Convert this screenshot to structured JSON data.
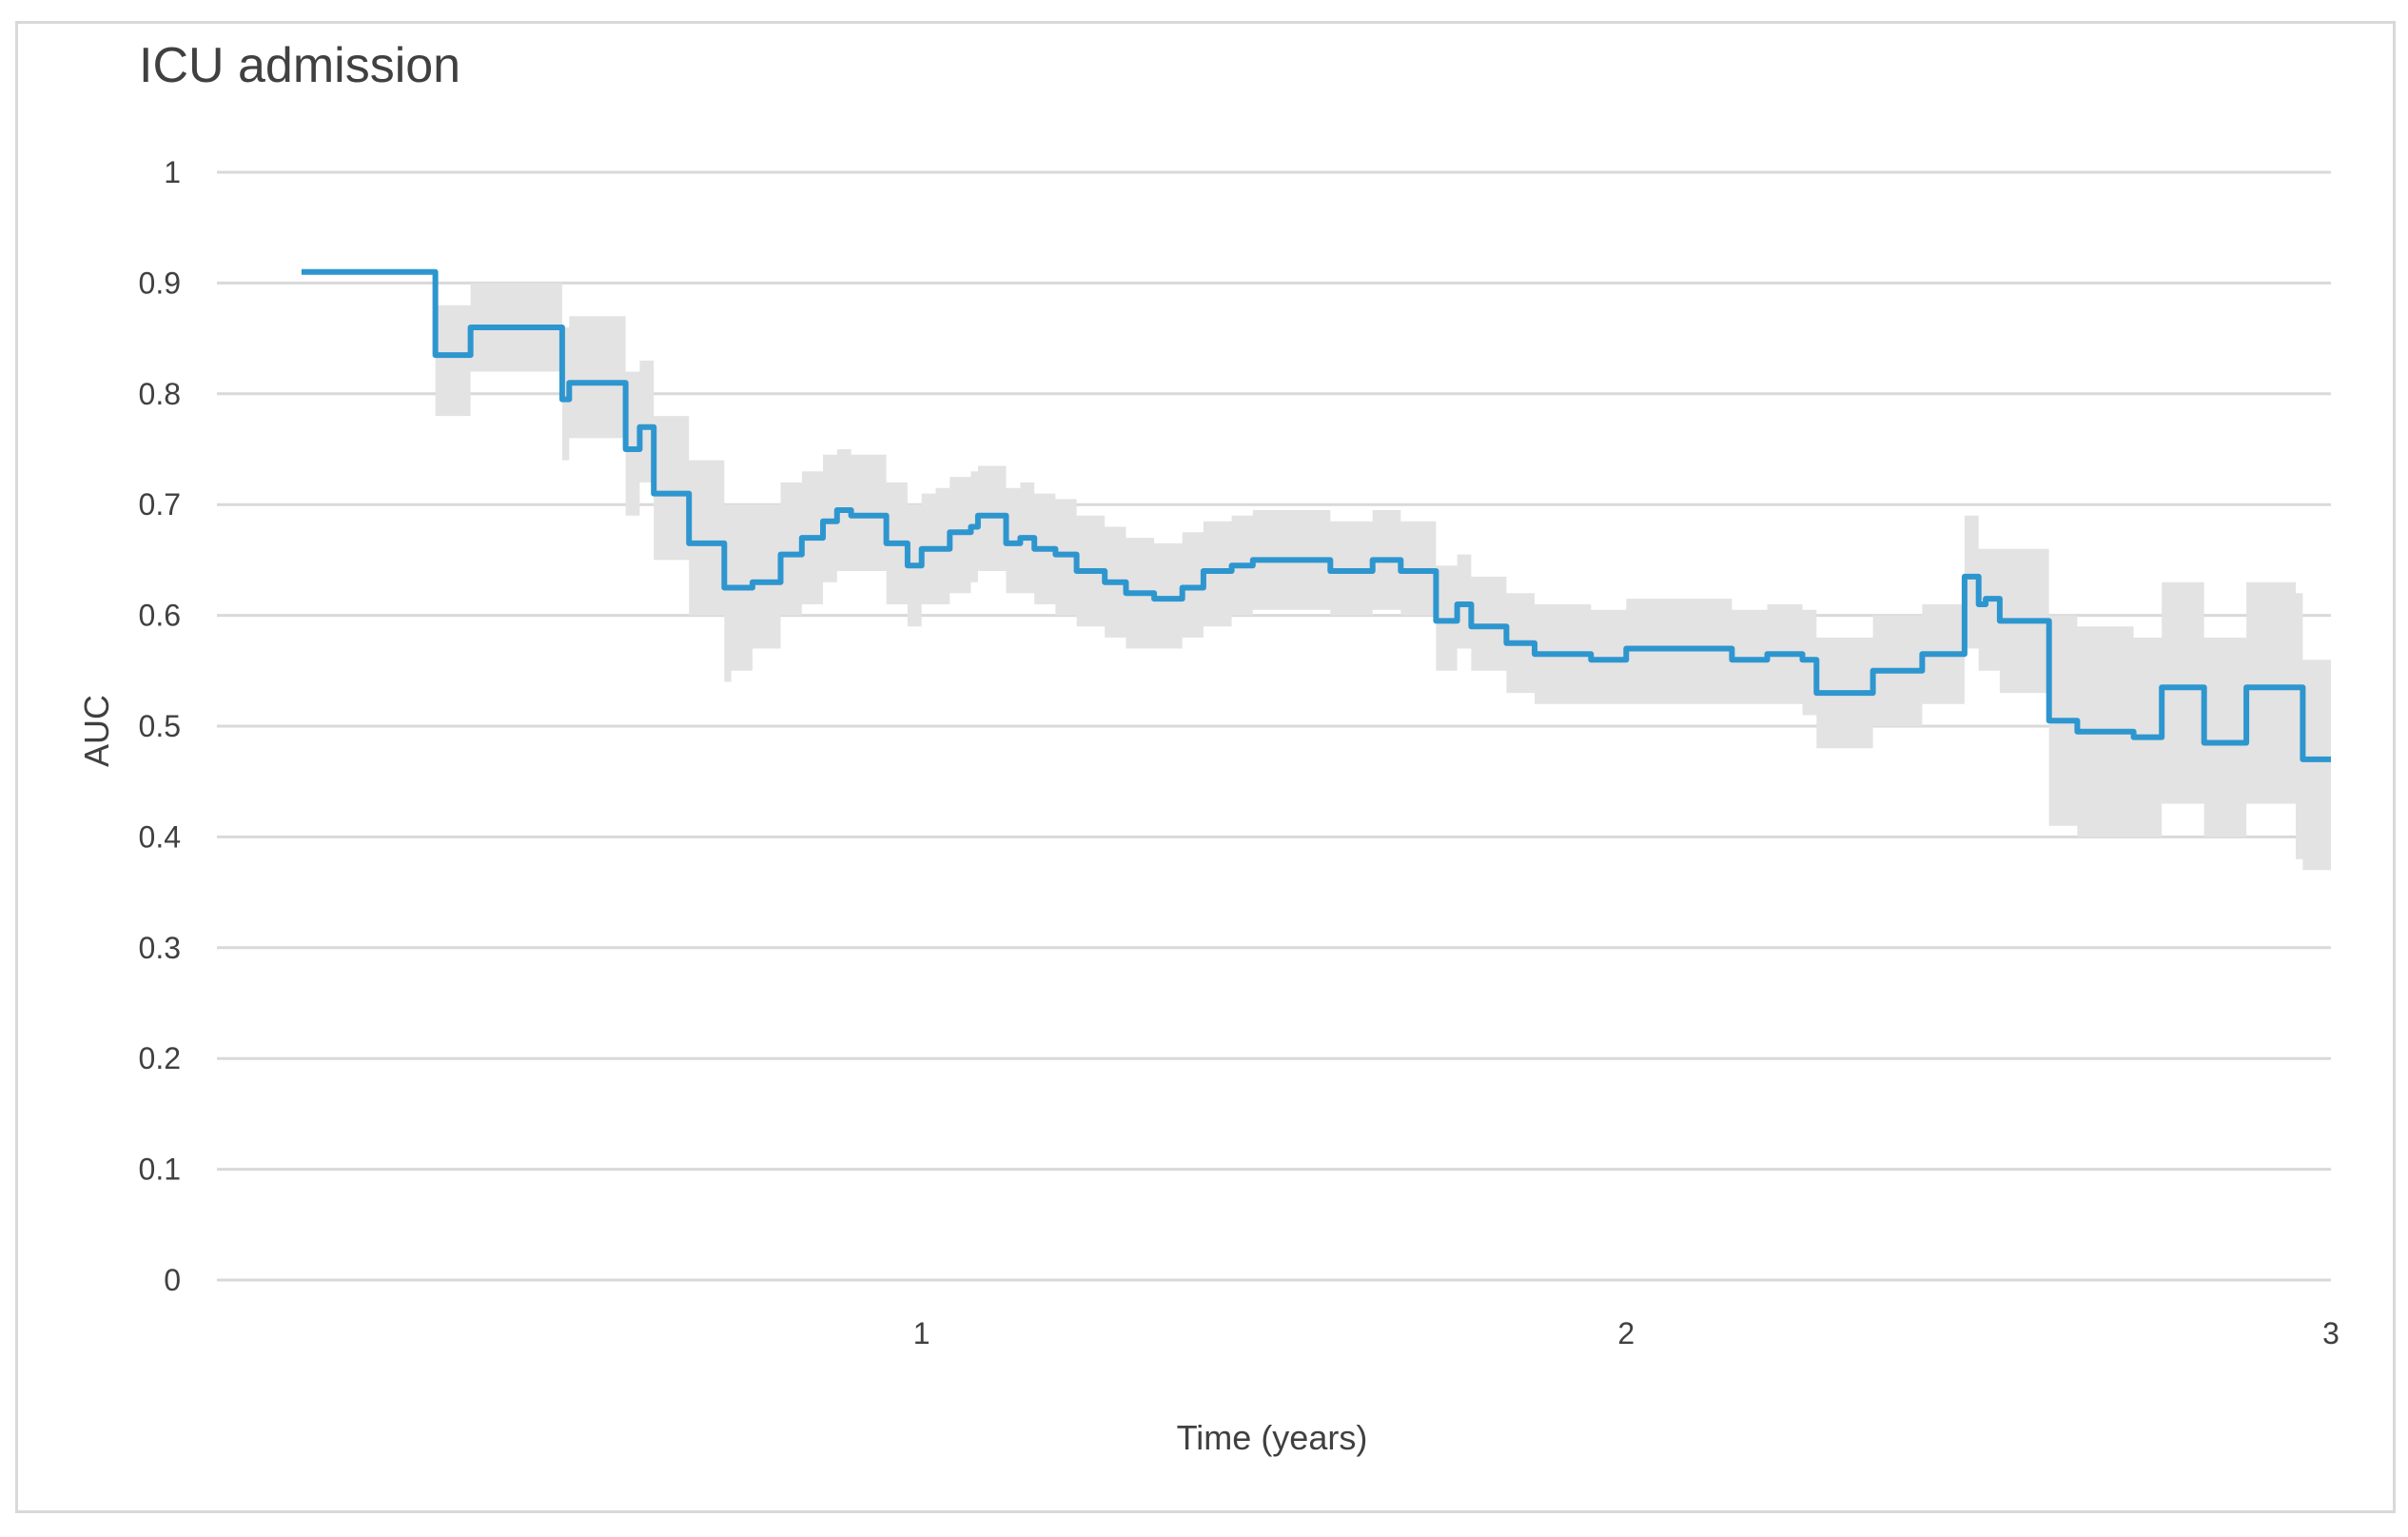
{
  "chart_data": {
    "type": "line",
    "title": "ICU admission",
    "xlabel": "Time (years)",
    "ylabel": "AUC",
    "xlim": [
      0,
      3
    ],
    "ylim": [
      0,
      1
    ],
    "x_ticks": [
      "1",
      "2",
      "3"
    ],
    "x_tick_values": [
      1,
      2,
      3
    ],
    "y_ticks": [
      "0",
      "0.1",
      "0.2",
      "0.3",
      "0.4",
      "0.5",
      "0.6",
      "0.7",
      "0.8",
      "0.9",
      "1"
    ],
    "y_tick_values": [
      0,
      0.1,
      0.2,
      0.3,
      0.4,
      0.5,
      0.6,
      0.7,
      0.8,
      0.9,
      1
    ],
    "grid": true,
    "legend": "none",
    "line_color": "#2e96cf",
    "band_color": "#e3e3e3",
    "series": [
      {
        "x": [
          0.12,
          0.31,
          0.31,
          0.36,
          0.36,
          0.49,
          0.49,
          0.5,
          0.5,
          0.58,
          0.58,
          0.6,
          0.6,
          0.62,
          0.62,
          0.67,
          0.67,
          0.72,
          0.72,
          0.73,
          0.73,
          0.76,
          0.76,
          0.8,
          0.8,
          0.83,
          0.83,
          0.86,
          0.86,
          0.88,
          0.88,
          0.9,
          0.9,
          0.95,
          0.95,
          0.98,
          0.98,
          1.0,
          1.0,
          1.02,
          1.02,
          1.04,
          1.04,
          1.07,
          1.07,
          1.08,
          1.08,
          1.12,
          1.12,
          1.14,
          1.14,
          1.16,
          1.16,
          1.19,
          1.19,
          1.22,
          1.22,
          1.26,
          1.26,
          1.29,
          1.29,
          1.33,
          1.33,
          1.37,
          1.37,
          1.4,
          1.4,
          1.44,
          1.44,
          1.47,
          1.47,
          1.52,
          1.52,
          1.58,
          1.58,
          1.64,
          1.64,
          1.68,
          1.68,
          1.73,
          1.73,
          1.76,
          1.76,
          1.78,
          1.78,
          1.83,
          1.83,
          1.87,
          1.87,
          1.9,
          1.9,
          1.95,
          1.95,
          2.0,
          2.0,
          2.05,
          2.05,
          2.15,
          2.15,
          2.2,
          2.2,
          2.25,
          2.25,
          2.27,
          2.27,
          2.35,
          2.35,
          2.39,
          2.39,
          2.42,
          2.42,
          2.47,
          2.47,
          2.48,
          2.48,
          2.5,
          2.5,
          2.51,
          2.51,
          2.53,
          2.53,
          2.6,
          2.6,
          2.64,
          2.64,
          2.72,
          2.72,
          2.76,
          2.76,
          2.82,
          2.82,
          2.88,
          2.88,
          2.95,
          2.95,
          2.96,
          2.96,
          3.0
        ],
        "y": [
          0.91,
          0.91,
          0.835,
          0.835,
          0.86,
          0.86,
          0.795,
          0.795,
          0.81,
          0.81,
          0.75,
          0.75,
          0.77,
          0.77,
          0.71,
          0.71,
          0.665,
          0.665,
          0.625,
          0.625,
          0.625,
          0.625,
          0.63,
          0.63,
          0.655,
          0.655,
          0.67,
          0.67,
          0.685,
          0.685,
          0.695,
          0.695,
          0.69,
          0.69,
          0.665,
          0.665,
          0.645,
          0.645,
          0.66,
          0.66,
          0.66,
          0.66,
          0.675,
          0.675,
          0.68,
          0.68,
          0.69,
          0.69,
          0.665,
          0.665,
          0.67,
          0.67,
          0.66,
          0.66,
          0.655,
          0.655,
          0.64,
          0.64,
          0.63,
          0.63,
          0.62,
          0.62,
          0.615,
          0.615,
          0.625,
          0.625,
          0.64,
          0.64,
          0.645,
          0.645,
          0.65,
          0.65,
          0.65,
          0.65,
          0.64,
          0.64,
          0.65,
          0.65,
          0.64,
          0.64,
          0.595,
          0.595,
          0.61,
          0.61,
          0.59,
          0.59,
          0.575,
          0.575,
          0.565,
          0.565,
          0.565,
          0.565,
          0.56,
          0.56,
          0.57,
          0.57,
          0.57,
          0.57,
          0.56,
          0.56,
          0.565,
          0.565,
          0.56,
          0.56,
          0.53,
          0.53,
          0.55,
          0.55,
          0.55,
          0.55,
          0.565,
          0.565,
          0.565,
          0.565,
          0.635,
          0.635,
          0.61,
          0.61,
          0.615,
          0.615,
          0.595,
          0.595,
          0.505,
          0.505,
          0.495,
          0.495,
          0.49,
          0.49,
          0.535,
          0.535,
          0.485,
          0.485,
          0.535,
          0.535,
          0.535,
          0.535,
          0.47,
          0.47
        ],
        "lower": [
          0.91,
          0.91,
          0.78,
          0.78,
          0.82,
          0.82,
          0.74,
          0.74,
          0.76,
          0.76,
          0.69,
          0.69,
          0.72,
          0.72,
          0.65,
          0.65,
          0.6,
          0.6,
          0.54,
          0.54,
          0.55,
          0.55,
          0.57,
          0.57,
          0.6,
          0.6,
          0.61,
          0.61,
          0.63,
          0.63,
          0.64,
          0.64,
          0.64,
          0.64,
          0.61,
          0.61,
          0.59,
          0.59,
          0.61,
          0.61,
          0.61,
          0.61,
          0.62,
          0.62,
          0.63,
          0.63,
          0.64,
          0.64,
          0.62,
          0.62,
          0.62,
          0.62,
          0.61,
          0.61,
          0.6,
          0.6,
          0.59,
          0.59,
          0.58,
          0.58,
          0.57,
          0.57,
          0.57,
          0.57,
          0.58,
          0.58,
          0.59,
          0.59,
          0.6,
          0.6,
          0.605,
          0.605,
          0.605,
          0.605,
          0.6,
          0.6,
          0.605,
          0.605,
          0.6,
          0.6,
          0.55,
          0.55,
          0.57,
          0.57,
          0.55,
          0.55,
          0.53,
          0.53,
          0.52,
          0.52,
          0.52,
          0.52,
          0.52,
          0.52,
          0.52,
          0.52,
          0.52,
          0.52,
          0.52,
          0.52,
          0.52,
          0.52,
          0.51,
          0.51,
          0.48,
          0.48,
          0.5,
          0.5,
          0.5,
          0.5,
          0.52,
          0.52,
          0.52,
          0.52,
          0.57,
          0.57,
          0.55,
          0.55,
          0.55,
          0.55,
          0.53,
          0.53,
          0.41,
          0.41,
          0.4,
          0.4,
          0.4,
          0.4,
          0.43,
          0.43,
          0.4,
          0.4,
          0.43,
          0.43,
          0.38,
          0.38,
          0.37,
          0.37
        ],
        "upper": [
          0.91,
          0.91,
          0.88,
          0.88,
          0.9,
          0.9,
          0.86,
          0.86,
          0.87,
          0.87,
          0.82,
          0.82,
          0.83,
          0.83,
          0.78,
          0.78,
          0.74,
          0.74,
          0.7,
          0.7,
          0.7,
          0.7,
          0.7,
          0.7,
          0.72,
          0.72,
          0.73,
          0.73,
          0.745,
          0.745,
          0.75,
          0.75,
          0.745,
          0.745,
          0.72,
          0.72,
          0.7,
          0.7,
          0.71,
          0.71,
          0.715,
          0.715,
          0.725,
          0.725,
          0.73,
          0.73,
          0.735,
          0.735,
          0.715,
          0.715,
          0.72,
          0.72,
          0.71,
          0.71,
          0.705,
          0.705,
          0.69,
          0.69,
          0.68,
          0.68,
          0.67,
          0.67,
          0.665,
          0.665,
          0.675,
          0.675,
          0.685,
          0.685,
          0.69,
          0.69,
          0.695,
          0.695,
          0.695,
          0.695,
          0.685,
          0.685,
          0.695,
          0.695,
          0.685,
          0.685,
          0.645,
          0.645,
          0.655,
          0.655,
          0.635,
          0.635,
          0.62,
          0.62,
          0.61,
          0.61,
          0.61,
          0.61,
          0.605,
          0.605,
          0.615,
          0.615,
          0.615,
          0.615,
          0.605,
          0.605,
          0.61,
          0.61,
          0.605,
          0.605,
          0.58,
          0.58,
          0.6,
          0.6,
          0.6,
          0.6,
          0.61,
          0.61,
          0.61,
          0.61,
          0.69,
          0.69,
          0.66,
          0.66,
          0.66,
          0.66,
          0.66,
          0.66,
          0.6,
          0.6,
          0.59,
          0.59,
          0.58,
          0.58,
          0.63,
          0.63,
          0.58,
          0.58,
          0.63,
          0.63,
          0.62,
          0.62,
          0.56,
          0.56
        ]
      }
    ]
  }
}
